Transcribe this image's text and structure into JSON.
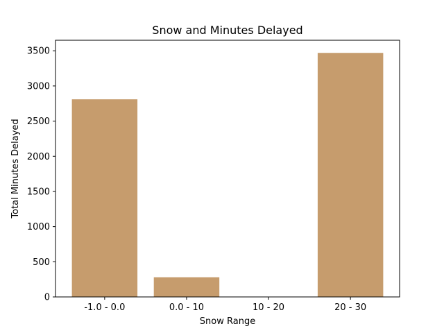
{
  "chart_data": {
    "type": "bar",
    "title": "Snow and Minutes Delayed",
    "xlabel": "Snow Range",
    "ylabel": "Total Minutes Delayed",
    "categories": [
      "-1.0 - 0.0",
      "0.0 - 10",
      "10 - 20",
      "20 - 30"
    ],
    "values": [
      2810,
      280,
      0,
      3470
    ],
    "ylim": [
      0,
      3650
    ],
    "yticks": [
      0,
      500,
      1000,
      1500,
      2000,
      2500,
      3000,
      3500
    ],
    "grid": false,
    "bar_color": "#c69c6d"
  }
}
